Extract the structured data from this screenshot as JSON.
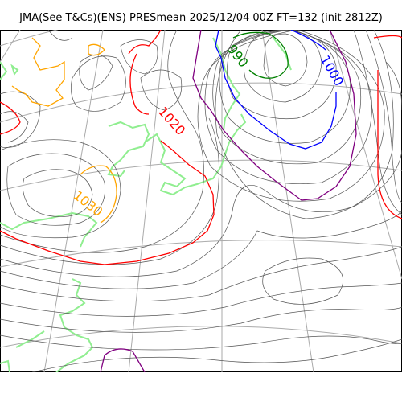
{
  "title": "JMA(See T&Cs)(ENS) PRESmean 2025/12/04 00Z FT=132 (init 2812Z)",
  "isobar_labels": [
    "990",
    "1000",
    "1020",
    "1030"
  ],
  "colors": {
    "isobar": "#555555",
    "isobar_990": "#008000",
    "isobar_1000": "#0000ff",
    "isobar_1010": "#800080",
    "isobar_1020": "#ff0000",
    "isobar_1030": "#ffa500",
    "coastline": "#90ee90",
    "graticule": "#aaaaaa"
  }
}
